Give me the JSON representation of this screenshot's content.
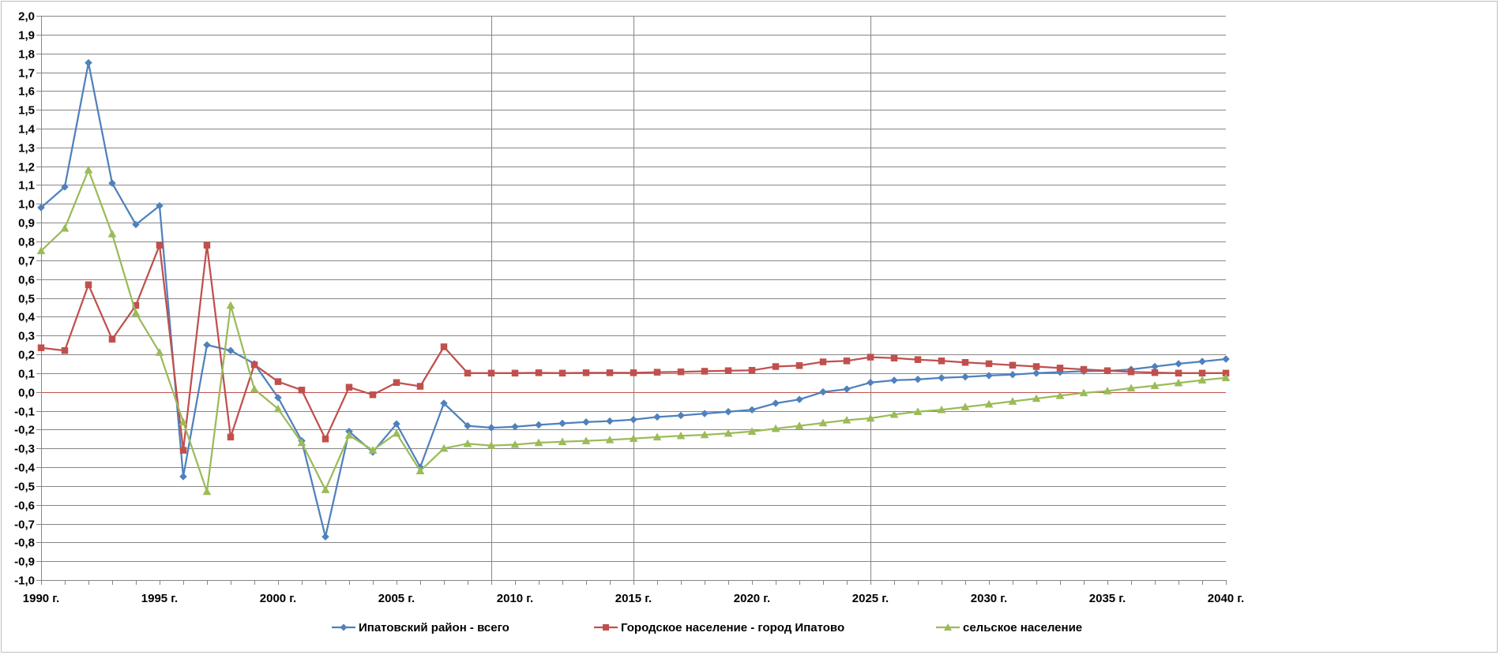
{
  "colors": {
    "series_blue": "#4F81BD",
    "series_red": "#C0504D",
    "series_green": "#9BBB59",
    "gridline": "#868686",
    "zero_line": "#C0504D"
  },
  "chart_data": {
    "type": "line",
    "title": "",
    "xlabel": "",
    "ylabel": "",
    "ylim": [
      -1.0,
      2.0
    ],
    "ystep": 0.1,
    "decimal_separator": ",",
    "xlim": [
      1990,
      2040
    ],
    "x_tick_labels": [
      "1990 г.",
      "1995 г.",
      "2000 г.",
      "2005 г.",
      "2010 г.",
      "2015 г.",
      "2020 г.",
      "2025 г.",
      "2030 г.",
      "2035 г.",
      "2040 г."
    ],
    "x_tick_years": [
      1990,
      1995,
      2000,
      2005,
      2010,
      2015,
      2020,
      2025,
      2030,
      2035,
      2040
    ],
    "vertical_gridlines_at": [
      2009,
      2015,
      2025
    ],
    "horizontal_grid": true,
    "legend_position": "bottom",
    "x": [
      1990,
      1991,
      1992,
      1993,
      1994,
      1995,
      1996,
      1997,
      1998,
      1999,
      2000,
      2001,
      2002,
      2003,
      2004,
      2005,
      2006,
      2007,
      2008,
      2009,
      2010,
      2011,
      2012,
      2013,
      2014,
      2015,
      2016,
      2017,
      2018,
      2019,
      2020,
      2021,
      2022,
      2023,
      2024,
      2025,
      2026,
      2027,
      2028,
      2029,
      2030,
      2031,
      2032,
      2033,
      2034,
      2035,
      2036,
      2037,
      2038,
      2039,
      2040
    ],
    "series": [
      {
        "name": "Ипатовский район - всего",
        "marker": "diamond",
        "color": "#4F81BD",
        "values": [
          0.98,
          1.09,
          1.75,
          1.11,
          0.89,
          0.99,
          -0.45,
          0.25,
          0.22,
          0.15,
          -0.03,
          -0.26,
          -0.77,
          -0.21,
          -0.32,
          -0.17,
          -0.4,
          -0.06,
          -0.18,
          -0.19,
          -0.185,
          -0.175,
          -0.167,
          -0.16,
          -0.155,
          -0.147,
          -0.133,
          -0.125,
          -0.115,
          -0.105,
          -0.095,
          -0.06,
          -0.04,
          0.0,
          0.015,
          0.05,
          0.062,
          0.067,
          0.075,
          0.08,
          0.087,
          0.092,
          0.1,
          0.105,
          0.11,
          0.112,
          0.12,
          0.135,
          0.15,
          0.162,
          0.175
        ]
      },
      {
        "name": "Городское население - город Ипатово",
        "marker": "square",
        "color": "#C0504D",
        "values": [
          0.235,
          0.22,
          0.57,
          0.28,
          0.46,
          0.78,
          -0.31,
          0.78,
          -0.24,
          0.145,
          0.055,
          0.01,
          -0.25,
          0.025,
          -0.015,
          0.05,
          0.03,
          0.24,
          0.1,
          0.1,
          0.1,
          0.102,
          0.1,
          0.102,
          0.102,
          0.102,
          0.105,
          0.107,
          0.11,
          0.113,
          0.115,
          0.135,
          0.14,
          0.16,
          0.165,
          0.185,
          0.18,
          0.172,
          0.165,
          0.157,
          0.15,
          0.142,
          0.135,
          0.127,
          0.12,
          0.113,
          0.107,
          0.103,
          0.1,
          0.1,
          0.1
        ]
      },
      {
        "name": "сельское население",
        "marker": "triangle",
        "color": "#9BBB59",
        "values": [
          0.75,
          0.87,
          1.18,
          0.84,
          0.42,
          0.21,
          -0.16,
          -0.53,
          0.46,
          0.015,
          -0.09,
          -0.27,
          -0.52,
          -0.23,
          -0.31,
          -0.22,
          -0.42,
          -0.3,
          -0.275,
          -0.285,
          -0.28,
          -0.27,
          -0.265,
          -0.26,
          -0.255,
          -0.248,
          -0.24,
          -0.233,
          -0.228,
          -0.22,
          -0.21,
          -0.195,
          -0.18,
          -0.165,
          -0.15,
          -0.14,
          -0.12,
          -0.105,
          -0.095,
          -0.08,
          -0.065,
          -0.05,
          -0.035,
          -0.02,
          -0.005,
          0.005,
          0.02,
          0.033,
          0.048,
          0.063,
          0.075
        ]
      }
    ]
  }
}
